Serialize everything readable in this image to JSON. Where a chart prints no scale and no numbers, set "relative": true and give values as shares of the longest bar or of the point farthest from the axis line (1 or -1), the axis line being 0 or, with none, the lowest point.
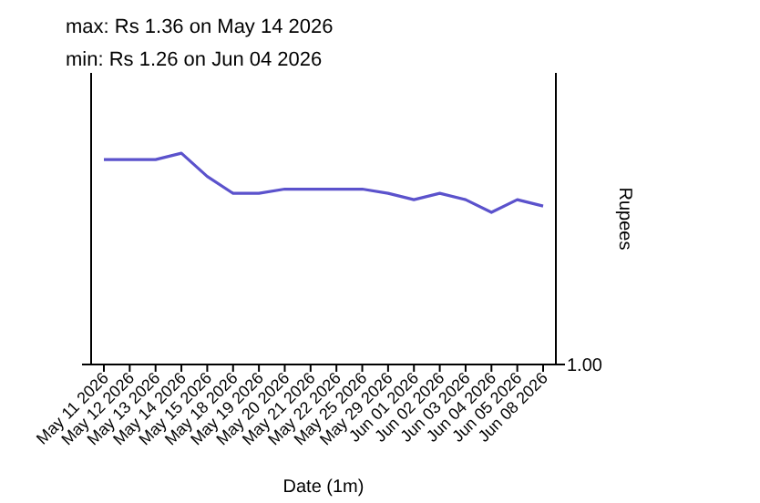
{
  "chart_data": {
    "type": "line",
    "title": "max: Rs 1.36 on May 14 2026",
    "subtitle": "min: Rs 1.26 on Jun 04 2026",
    "xlabel": "Date (1m)",
    "ylabel": "Rupees",
    "categories": [
      "May 11 2026",
      "May 12 2026",
      "May 13 2026",
      "May 14 2026",
      "May 15 2026",
      "May 18 2026",
      "May 19 2026",
      "May 20 2026",
      "May 21 2026",
      "May 22 2026",
      "May 25 2026",
      "May 29 2026",
      "Jun 01 2026",
      "Jun 02 2026",
      "Jun 03 2026",
      "Jun 04 2026",
      "Jun 05 2026",
      "Jun 08 2026"
    ],
    "series": [
      {
        "color": "#5b52cc",
        "values": [
          0.97,
          0.97,
          0.97,
          1,
          0.89,
          0.81,
          0.81,
          0.83,
          0.83,
          0.83,
          0.83,
          0.81,
          0.78,
          0.81,
          0.78,
          0.72,
          0.78,
          0.75
        ]
      }
    ],
    "relative": true,
    "annotations": [
      "1.00"
    ],
    "marker": "none",
    "line_style": "solid"
  }
}
